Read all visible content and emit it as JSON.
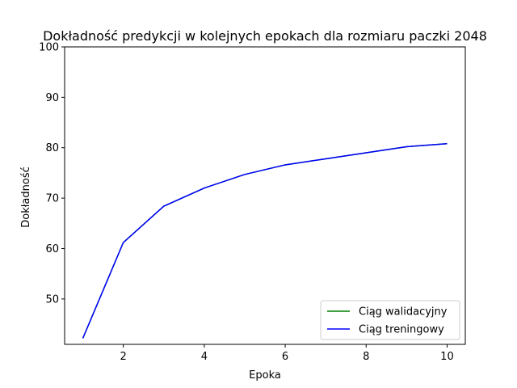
{
  "chart_data": {
    "type": "line",
    "title": "Dokładność predykcji w kolejnych epokach dla rozmiaru paczki 2048",
    "xlabel": "Epoka",
    "ylabel": "Dokładność",
    "xlim": [
      0.55,
      10.45
    ],
    "ylim": [
      41,
      100
    ],
    "xticks": [
      2,
      4,
      6,
      8,
      10
    ],
    "yticks": [
      50,
      60,
      70,
      80,
      90,
      100
    ],
    "grid": false,
    "legend_position": "lower-right",
    "x": [
      1,
      2,
      3,
      4,
      5,
      6,
      7,
      8,
      9,
      10
    ],
    "series": [
      {
        "name": "Ciąg walidacyjny",
        "color": "#008000",
        "values": [
          42.2,
          61.2,
          68.4,
          72.0,
          74.7,
          76.6,
          77.8,
          79.0,
          80.2,
          80.8
        ]
      },
      {
        "name": "Ciąg treningowy",
        "color": "#0000ff",
        "values": [
          42.2,
          61.2,
          68.4,
          72.0,
          74.7,
          76.6,
          77.8,
          79.0,
          80.2,
          80.8
        ]
      }
    ]
  }
}
